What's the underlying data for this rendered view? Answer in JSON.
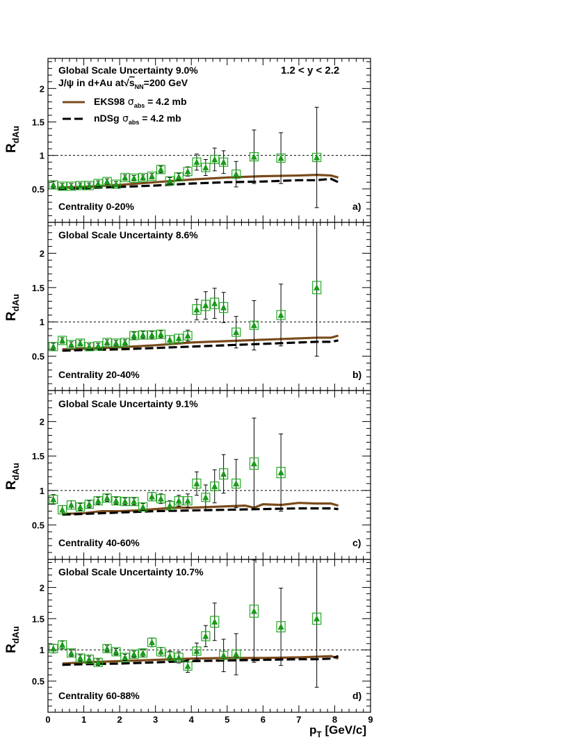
{
  "figure": {
    "header_lines": [
      "J/ψ in d+Au at",
      "√",
      "s",
      "NN",
      "=200 GeV"
    ],
    "rapidity": "1.2 < y < 2.2",
    "legend": [
      {
        "name": "EKS98",
        "sub": "abs",
        "value": " = 4.2 mb",
        "style": "solid",
        "color": "#7a4a1a"
      },
      {
        "name": "nDSg",
        "sub": "abs",
        "value": " = 4.2 mb",
        "style": "dashed",
        "color": "#000000"
      }
    ],
    "ylabel_main": "R",
    "ylabel_sub": "dAu",
    "xlabel_main": "p",
    "xlabel_sub": "T",
    "xlabel_unit": " [GeV/c]",
    "x_ticks": [
      "0",
      "1",
      "2",
      "3",
      "4",
      "5",
      "6",
      "7",
      "8",
      "9"
    ],
    "y_ticks": [
      "0.5",
      "1",
      "1.5",
      "2"
    ],
    "colors": {
      "points": "#1a9a1a",
      "box": "#22aa22",
      "eks98": "#7a4a1a",
      "ndsg": "#000000"
    }
  },
  "chart_data": [
    {
      "type": "scatter",
      "panel_label": "a)",
      "global_scale": "Global Scale Uncertainty 9.0%",
      "centrality": "Centrality 0-20%",
      "xlim": [
        0,
        9
      ],
      "ylim": [
        0,
        2.45
      ],
      "reference_line": 1,
      "points": [
        {
          "x": 0.15,
          "y": 0.56,
          "err": 0.05
        },
        {
          "x": 0.4,
          "y": 0.54,
          "err": 0.04
        },
        {
          "x": 0.65,
          "y": 0.54,
          "err": 0.04
        },
        {
          "x": 0.9,
          "y": 0.55,
          "err": 0.04
        },
        {
          "x": 1.15,
          "y": 0.55,
          "err": 0.04
        },
        {
          "x": 1.4,
          "y": 0.58,
          "err": 0.04
        },
        {
          "x": 1.65,
          "y": 0.61,
          "err": 0.04
        },
        {
          "x": 1.9,
          "y": 0.57,
          "err": 0.04
        },
        {
          "x": 2.15,
          "y": 0.67,
          "err": 0.04
        },
        {
          "x": 2.4,
          "y": 0.66,
          "err": 0.04
        },
        {
          "x": 2.65,
          "y": 0.67,
          "err": 0.04
        },
        {
          "x": 2.9,
          "y": 0.69,
          "err": 0.04
        },
        {
          "x": 3.15,
          "y": 0.79,
          "err": 0.05
        },
        {
          "x": 3.4,
          "y": 0.62,
          "err": 0.05
        },
        {
          "x": 3.65,
          "y": 0.68,
          "err": 0.05
        },
        {
          "x": 3.9,
          "y": 0.76,
          "err": 0.07
        },
        {
          "x": 4.15,
          "y": 0.9,
          "err": 0.12
        },
        {
          "x": 4.4,
          "y": 0.82,
          "err": 0.12
        },
        {
          "x": 4.65,
          "y": 0.94,
          "err": 0.17
        },
        {
          "x": 4.9,
          "y": 0.9,
          "err": 0.17
        },
        {
          "x": 5.25,
          "y": 0.72,
          "err": 0.19
        },
        {
          "x": 5.75,
          "y": 0.98,
          "err": 0.4
        },
        {
          "x": 6.5,
          "y": 0.96,
          "err": 0.38
        },
        {
          "x": 7.5,
          "y": 0.97,
          "err": 0.75
        }
      ],
      "series": [
        {
          "name": "EKS98",
          "x": [
            0.3,
            1.0,
            2.0,
            3.0,
            4.0,
            5.0,
            6.0,
            7.0,
            7.5,
            7.9,
            8.1
          ],
          "y": [
            0.52,
            0.53,
            0.56,
            0.6,
            0.64,
            0.67,
            0.69,
            0.7,
            0.71,
            0.7,
            0.67
          ]
        },
        {
          "name": "nDSg",
          "x": [
            0.3,
            1.0,
            2.0,
            3.0,
            4.0,
            5.0,
            6.0,
            7.0,
            7.5,
            7.9,
            8.1
          ],
          "y": [
            0.5,
            0.51,
            0.53,
            0.55,
            0.58,
            0.6,
            0.61,
            0.63,
            0.63,
            0.65,
            0.6
          ]
        }
      ]
    },
    {
      "type": "scatter",
      "panel_label": "b)",
      "global_scale": "Global Scale Uncertainty 8.6%",
      "centrality": "Centrality 20-40%",
      "xlim": [
        0,
        9
      ],
      "ylim": [
        0,
        2.45
      ],
      "reference_line": 1,
      "points": [
        {
          "x": 0.15,
          "y": 0.64,
          "err": 0.05
        },
        {
          "x": 0.4,
          "y": 0.73,
          "err": 0.04
        },
        {
          "x": 0.65,
          "y": 0.67,
          "err": 0.04
        },
        {
          "x": 0.9,
          "y": 0.69,
          "err": 0.04
        },
        {
          "x": 1.15,
          "y": 0.64,
          "err": 0.04
        },
        {
          "x": 1.4,
          "y": 0.65,
          "err": 0.04
        },
        {
          "x": 1.65,
          "y": 0.7,
          "err": 0.04
        },
        {
          "x": 1.9,
          "y": 0.69,
          "err": 0.04
        },
        {
          "x": 2.15,
          "y": 0.7,
          "err": 0.04
        },
        {
          "x": 2.4,
          "y": 0.8,
          "err": 0.05
        },
        {
          "x": 2.65,
          "y": 0.81,
          "err": 0.05
        },
        {
          "x": 2.9,
          "y": 0.81,
          "err": 0.05
        },
        {
          "x": 3.15,
          "y": 0.82,
          "err": 0.05
        },
        {
          "x": 3.4,
          "y": 0.74,
          "err": 0.06
        },
        {
          "x": 3.65,
          "y": 0.76,
          "err": 0.06
        },
        {
          "x": 3.9,
          "y": 0.8,
          "err": 0.08
        },
        {
          "x": 4.15,
          "y": 1.18,
          "err": 0.15
        },
        {
          "x": 4.4,
          "y": 1.24,
          "err": 0.2
        },
        {
          "x": 4.65,
          "y": 1.27,
          "err": 0.22
        },
        {
          "x": 4.9,
          "y": 1.21,
          "err": 0.22
        },
        {
          "x": 5.25,
          "y": 0.85,
          "err": 0.23
        },
        {
          "x": 5.75,
          "y": 0.95,
          "err": 0.36
        },
        {
          "x": 6.5,
          "y": 1.1,
          "err": 0.45
        },
        {
          "x": 7.5,
          "y": 1.5,
          "err": 1.0
        }
      ],
      "series": [
        {
          "name": "EKS98",
          "x": [
            0.4,
            1.0,
            2.0,
            3.0,
            4.0,
            5.0,
            6.0,
            7.0,
            7.5,
            7.9,
            8.1
          ],
          "y": [
            0.6,
            0.61,
            0.63,
            0.66,
            0.7,
            0.72,
            0.74,
            0.76,
            0.77,
            0.77,
            0.8
          ]
        },
        {
          "name": "nDSg",
          "x": [
            0.4,
            1.0,
            2.0,
            3.0,
            4.0,
            5.0,
            6.0,
            7.0,
            7.5,
            7.9,
            8.1
          ],
          "y": [
            0.58,
            0.59,
            0.6,
            0.62,
            0.64,
            0.66,
            0.68,
            0.7,
            0.71,
            0.71,
            0.73
          ]
        }
      ]
    },
    {
      "type": "scatter",
      "panel_label": "c)",
      "global_scale": "Global Scale Uncertainty 9.1%",
      "centrality": "Centrality 40-60%",
      "xlim": [
        0,
        9
      ],
      "ylim": [
        0,
        2.45
      ],
      "reference_line": 1,
      "points": [
        {
          "x": 0.15,
          "y": 0.87,
          "err": 0.07
        },
        {
          "x": 0.4,
          "y": 0.72,
          "err": 0.06
        },
        {
          "x": 0.65,
          "y": 0.79,
          "err": 0.06
        },
        {
          "x": 0.9,
          "y": 0.76,
          "err": 0.05
        },
        {
          "x": 1.15,
          "y": 0.8,
          "err": 0.05
        },
        {
          "x": 1.4,
          "y": 0.85,
          "err": 0.05
        },
        {
          "x": 1.65,
          "y": 0.89,
          "err": 0.05
        },
        {
          "x": 1.9,
          "y": 0.85,
          "err": 0.05
        },
        {
          "x": 2.15,
          "y": 0.84,
          "err": 0.05
        },
        {
          "x": 2.4,
          "y": 0.84,
          "err": 0.05
        },
        {
          "x": 2.65,
          "y": 0.76,
          "err": 0.05
        },
        {
          "x": 2.9,
          "y": 0.91,
          "err": 0.06
        },
        {
          "x": 3.15,
          "y": 0.88,
          "err": 0.07
        },
        {
          "x": 3.4,
          "y": 0.78,
          "err": 0.07
        },
        {
          "x": 3.65,
          "y": 0.85,
          "err": 0.08
        },
        {
          "x": 3.9,
          "y": 0.85,
          "err": 0.1
        },
        {
          "x": 4.15,
          "y": 1.1,
          "err": 0.17
        },
        {
          "x": 4.4,
          "y": 0.9,
          "err": 0.18
        },
        {
          "x": 4.65,
          "y": 1.06,
          "err": 0.24
        },
        {
          "x": 4.9,
          "y": 1.24,
          "err": 0.28
        },
        {
          "x": 5.25,
          "y": 1.1,
          "err": 0.35
        },
        {
          "x": 5.75,
          "y": 1.39,
          "err": 0.66
        },
        {
          "x": 6.5,
          "y": 1.26,
          "err": 0.56
        }
      ],
      "series": [
        {
          "name": "EKS98",
          "x": [
            0.4,
            1.0,
            1.5,
            2.0,
            2.5,
            3.0,
            3.5,
            4.0,
            4.5,
            5.0,
            5.5,
            5.75,
            6.0,
            6.5,
            7.0,
            7.5,
            7.9,
            8.1
          ],
          "y": [
            0.66,
            0.67,
            0.7,
            0.7,
            0.71,
            0.73,
            0.75,
            0.75,
            0.76,
            0.77,
            0.78,
            0.75,
            0.8,
            0.79,
            0.82,
            0.81,
            0.81,
            0.78
          ]
        },
        {
          "name": "nDSg",
          "x": [
            0.4,
            1.0,
            2.0,
            3.0,
            4.0,
            5.0,
            6.0,
            7.0,
            7.5,
            7.9,
            8.1
          ],
          "y": [
            0.65,
            0.66,
            0.68,
            0.7,
            0.71,
            0.72,
            0.73,
            0.74,
            0.74,
            0.74,
            0.73
          ]
        }
      ]
    },
    {
      "type": "scatter",
      "panel_label": "d)",
      "global_scale": "Global Scale Uncertainty 10.7%",
      "centrality": "Centrality 60-88%",
      "xlim": [
        0,
        9
      ],
      "ylim": [
        0,
        2.45
      ],
      "reference_line": 1,
      "points": [
        {
          "x": 0.15,
          "y": 1.02,
          "err": 0.07
        },
        {
          "x": 0.4,
          "y": 1.08,
          "err": 0.06
        },
        {
          "x": 0.65,
          "y": 0.95,
          "err": 0.05
        },
        {
          "x": 0.9,
          "y": 0.87,
          "err": 0.05
        },
        {
          "x": 1.15,
          "y": 0.85,
          "err": 0.05
        },
        {
          "x": 1.4,
          "y": 0.8,
          "err": 0.05
        },
        {
          "x": 1.65,
          "y": 1.02,
          "err": 0.05
        },
        {
          "x": 1.9,
          "y": 0.97,
          "err": 0.05
        },
        {
          "x": 2.15,
          "y": 0.88,
          "err": 0.05
        },
        {
          "x": 2.4,
          "y": 0.93,
          "err": 0.05
        },
        {
          "x": 2.65,
          "y": 0.95,
          "err": 0.06
        },
        {
          "x": 2.9,
          "y": 1.12,
          "err": 0.07
        },
        {
          "x": 3.15,
          "y": 0.97,
          "err": 0.07
        },
        {
          "x": 3.4,
          "y": 0.9,
          "err": 0.08
        },
        {
          "x": 3.65,
          "y": 0.88,
          "err": 0.09
        },
        {
          "x": 3.9,
          "y": 0.74,
          "err": 0.1
        },
        {
          "x": 4.15,
          "y": 0.98,
          "err": 0.13
        },
        {
          "x": 4.4,
          "y": 1.22,
          "err": 0.17
        },
        {
          "x": 4.65,
          "y": 1.45,
          "err": 0.3
        },
        {
          "x": 4.9,
          "y": 0.91,
          "err": 0.26
        },
        {
          "x": 5.25,
          "y": 0.93,
          "err": 0.33
        },
        {
          "x": 5.75,
          "y": 1.62,
          "err": 0.82
        },
        {
          "x": 6.5,
          "y": 1.37,
          "err": 0.62
        },
        {
          "x": 7.5,
          "y": 1.5,
          "err": 1.1
        }
      ],
      "series": [
        {
          "name": "EKS98",
          "x": [
            0.4,
            1.0,
            2.0,
            3.0,
            4.0,
            5.0,
            6.0,
            7.0,
            7.5,
            7.9,
            8.1
          ],
          "y": [
            0.78,
            0.8,
            0.82,
            0.84,
            0.86,
            0.87,
            0.87,
            0.88,
            0.89,
            0.9,
            0.86
          ]
        },
        {
          "name": "nDSg",
          "x": [
            0.4,
            1.0,
            2.0,
            3.0,
            4.0,
            5.0,
            6.0,
            7.0,
            7.5,
            7.9,
            8.1
          ],
          "y": [
            0.76,
            0.77,
            0.78,
            0.8,
            0.82,
            0.83,
            0.84,
            0.85,
            0.85,
            0.86,
            0.9
          ]
        }
      ]
    }
  ]
}
